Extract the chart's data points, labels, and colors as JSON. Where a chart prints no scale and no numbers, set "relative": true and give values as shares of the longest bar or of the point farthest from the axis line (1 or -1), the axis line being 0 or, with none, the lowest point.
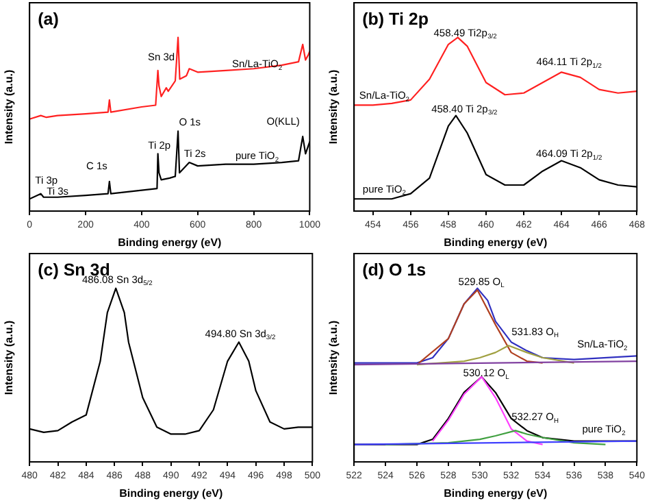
{
  "chart_data": [
    {
      "type": "line",
      "title": "(a)",
      "xlabel": "Binding energy (eV)",
      "ylabel": "Intensity (a.u.)",
      "relative": true,
      "xlim": [
        0,
        1000
      ],
      "xticks": [
        0,
        200,
        400,
        600,
        800,
        1000
      ],
      "legend": false,
      "grid": false,
      "marker": "none",
      "series": [
        {
          "color": "#ff2020",
          "x": [
            0,
            40,
            60,
            100,
            200,
            280,
            285,
            290,
            400,
            450,
            458,
            462,
            470,
            488,
            495,
            520,
            530,
            536,
            560,
            570,
            600,
            700,
            800,
            900,
            960,
            975,
            985,
            995,
            1000
          ],
          "values": [
            0.53,
            0.55,
            0.54,
            0.55,
            0.56,
            0.57,
            0.64,
            0.57,
            0.6,
            0.61,
            0.81,
            0.72,
            0.66,
            0.71,
            0.69,
            0.75,
            1.0,
            0.76,
            0.78,
            0.82,
            0.8,
            0.81,
            0.82,
            0.84,
            0.86,
            0.96,
            0.87,
            0.9,
            0.92
          ]
        },
        {
          "color": "#000000",
          "x": [
            0,
            40,
            50,
            100,
            200,
            280,
            285,
            290,
            400,
            455,
            458,
            462,
            470,
            500,
            520,
            530,
            535,
            570,
            600,
            700,
            800,
            900,
            960,
            975,
            985,
            1000
          ],
          "values": [
            0.07,
            0.1,
            0.08,
            0.08,
            0.09,
            0.1,
            0.17,
            0.1,
            0.12,
            0.13,
            0.33,
            0.22,
            0.18,
            0.19,
            0.2,
            0.46,
            0.22,
            0.28,
            0.26,
            0.27,
            0.27,
            0.28,
            0.29,
            0.43,
            0.33,
            0.4
          ]
        }
      ],
      "annotations": [
        "Sn 3d",
        "Sn/La-TiO$_{2}$",
        "O 1s",
        "Ti 2p",
        "Ti 2s",
        "pure TiO$_{2}$",
        "O(KLL)",
        "Ti 3p",
        "Ti 3s",
        "C 1s"
      ]
    },
    {
      "type": "line",
      "title": "(b) Ti 2p",
      "xlabel": "Binding energy (eV)",
      "ylabel": "Intensity (a.u.)",
      "relative": true,
      "xlim": [
        453,
        468
      ],
      "xticks": [
        454,
        456,
        458,
        460,
        462,
        464,
        466,
        468
      ],
      "legend": false,
      "grid": false,
      "marker": "none",
      "series": [
        {
          "color": "#ff2020",
          "x": [
            453,
            454,
            455,
            456,
            457,
            458,
            458.5,
            459,
            460,
            461,
            462,
            463,
            464,
            465,
            466,
            467,
            468
          ],
          "values": [
            0.61,
            0.61,
            0.62,
            0.64,
            0.76,
            0.96,
            1.0,
            0.95,
            0.74,
            0.67,
            0.68,
            0.74,
            0.8,
            0.77,
            0.7,
            0.68,
            0.69
          ]
        },
        {
          "color": "#000000",
          "x": [
            453,
            455,
            456,
            457,
            458,
            458.4,
            459,
            460,
            461,
            462,
            463,
            464,
            465,
            466,
            467,
            468
          ],
          "values": [
            0.07,
            0.07,
            0.1,
            0.19,
            0.49,
            0.55,
            0.45,
            0.21,
            0.15,
            0.15,
            0.23,
            0.29,
            0.25,
            0.18,
            0.15,
            0.14
          ]
        }
      ],
      "annotations": [
        "458.49 Ti2p$_{3/2}$",
        "464.11 Ti 2p$_{1/2}$",
        "458.40 Ti 2p$_{3/2}$",
        "464.09 Ti 2p$_{1/2}$",
        "Sn/La-TiO$_{2}$",
        "pure TiO$_{2}$"
      ]
    },
    {
      "type": "line",
      "title": "(c) Sn 3d",
      "xlabel": "Binding energy (eV)",
      "ylabel": "Intensity (a.u.)",
      "relative": true,
      "xlim": [
        480,
        500
      ],
      "xticks": [
        480,
        482,
        484,
        486,
        488,
        490,
        492,
        494,
        496,
        498,
        500
      ],
      "legend": false,
      "grid": false,
      "marker": "none",
      "series": [
        {
          "color": "#000000",
          "x": [
            480,
            481,
            482,
            483,
            484,
            485,
            485.5,
            486.1,
            486.7,
            487,
            488,
            489,
            490,
            491,
            492,
            493,
            494,
            494.8,
            495.5,
            496,
            497,
            498,
            499,
            500
          ],
          "values": [
            0.19,
            0.17,
            0.18,
            0.23,
            0.27,
            0.58,
            0.86,
            1.0,
            0.86,
            0.69,
            0.37,
            0.2,
            0.16,
            0.16,
            0.18,
            0.3,
            0.58,
            0.69,
            0.58,
            0.41,
            0.23,
            0.19,
            0.2,
            0.2
          ]
        }
      ],
      "annotations": [
        "486.08 Sn 3d$_{5/2}$",
        "494.80 Sn 3d$_{3/2}$"
      ]
    },
    {
      "type": "line",
      "title": "(d) O 1s",
      "xlabel": "Binding energy (eV)",
      "ylabel": "Intensity (a.u.)",
      "relative": true,
      "xlim": [
        522,
        540
      ],
      "xticks": [
        522,
        524,
        526,
        528,
        530,
        532,
        534,
        536,
        538,
        540
      ],
      "legend": false,
      "grid": false,
      "marker": "none",
      "series": [
        {
          "color": "#8040a0",
          "x": [
            522,
            540
          ],
          "values": [
            0.56,
            0.58
          ]
        },
        {
          "color": "#a0a040",
          "x": [
            526,
            529,
            530,
            531,
            531.83,
            533,
            534,
            536
          ],
          "values": [
            0.56,
            0.58,
            0.6,
            0.63,
            0.67,
            0.63,
            0.6,
            0.57
          ]
        },
        {
          "color": "#b04020",
          "x": [
            526,
            528,
            529,
            529.85,
            531,
            532,
            533,
            534
          ],
          "values": [
            0.56,
            0.71,
            0.91,
            0.99,
            0.79,
            0.63,
            0.58,
            0.57
          ]
        },
        {
          "color": "#3030c0",
          "x": [
            522,
            526,
            527,
            528,
            529,
            529.85,
            530.5,
            531,
            532,
            533,
            534,
            536,
            540
          ],
          "values": [
            0.57,
            0.57,
            0.6,
            0.71,
            0.91,
            1.0,
            0.93,
            0.81,
            0.69,
            0.64,
            0.6,
            0.59,
            0.61
          ]
        },
        {
          "color": "#4040ff",
          "x": [
            522,
            540
          ],
          "values": [
            0.1,
            0.12
          ]
        },
        {
          "color": "#40a040",
          "x": [
            524,
            528,
            530,
            531,
            532.27,
            533,
            534,
            536,
            538
          ],
          "values": [
            0.1,
            0.11,
            0.13,
            0.15,
            0.18,
            0.16,
            0.14,
            0.11,
            0.1
          ]
        },
        {
          "color": "#ff40ff",
          "x": [
            527,
            528,
            529,
            530.12,
            531,
            532,
            533,
            534
          ],
          "values": [
            0.12,
            0.24,
            0.39,
            0.49,
            0.37,
            0.19,
            0.12,
            0.1
          ]
        },
        {
          "color": "#000000",
          "x": [
            522,
            526,
            527,
            528,
            529,
            530.12,
            531,
            532,
            533,
            534,
            536,
            540
          ],
          "values": [
            0.1,
            0.1,
            0.13,
            0.25,
            0.4,
            0.49,
            0.4,
            0.25,
            0.18,
            0.14,
            0.12,
            0.12
          ]
        }
      ],
      "annotations": [
        "529.85 O$_{L}$",
        "531.83 O$_{H}$",
        "Sn/La-TiO$_{2}$",
        "530.12 O$_{L}$",
        "532.27 O$_{H}$",
        "pure TiO$_{2}$"
      ]
    }
  ]
}
